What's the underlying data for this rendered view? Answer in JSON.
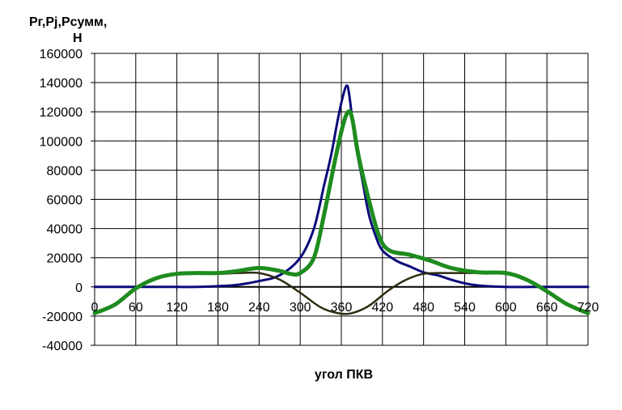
{
  "chart_data": {
    "type": "line",
    "xlabel": "угол ПКВ",
    "ylabel_line1": "Pг,Pj,Pсумм,",
    "ylabel_line2": "Н",
    "xlim": [
      0,
      720
    ],
    "ylim": [
      -40000,
      160000
    ],
    "x_ticks": [
      0,
      60,
      120,
      180,
      240,
      300,
      360,
      420,
      480,
      540,
      600,
      660,
      720
    ],
    "y_ticks": [
      160000,
      140000,
      120000,
      100000,
      80000,
      60000,
      40000,
      20000,
      0,
      -20000,
      -40000
    ],
    "grid": true,
    "legend": "none",
    "series": [
      {
        "color": "#0a0a7a",
        "stroke_width": 3,
        "points": [
          [
            0,
            0
          ],
          [
            30,
            0
          ],
          [
            60,
            0
          ],
          [
            90,
            0
          ],
          [
            120,
            0
          ],
          [
            150,
            0
          ],
          [
            180,
            500
          ],
          [
            210,
            1500
          ],
          [
            240,
            4000
          ],
          [
            270,
            8000
          ],
          [
            300,
            20000
          ],
          [
            320,
            40000
          ],
          [
            335,
            70000
          ],
          [
            345,
            90000
          ],
          [
            355,
            115000
          ],
          [
            362,
            130000
          ],
          [
            368,
            138000
          ],
          [
            372,
            130000
          ],
          [
            380,
            100000
          ],
          [
            390,
            75000
          ],
          [
            400,
            50000
          ],
          [
            410,
            35000
          ],
          [
            420,
            25000
          ],
          [
            440,
            18000
          ],
          [
            460,
            14000
          ],
          [
            480,
            10000
          ],
          [
            500,
            8000
          ],
          [
            520,
            5000
          ],
          [
            540,
            2500
          ],
          [
            560,
            1000
          ],
          [
            600,
            0
          ],
          [
            640,
            0
          ],
          [
            680,
            0
          ],
          [
            720,
            0
          ]
        ]
      },
      {
        "color": "#2e2a10",
        "stroke_width": 2.5,
        "points": [
          [
            0,
            -18000
          ],
          [
            30,
            -12000
          ],
          [
            60,
            -1000
          ],
          [
            90,
            6000
          ],
          [
            120,
            9000
          ],
          [
            150,
            9500
          ],
          [
            180,
            9000
          ],
          [
            210,
            9500
          ],
          [
            240,
            9500
          ],
          [
            270,
            5000
          ],
          [
            300,
            -4000
          ],
          [
            330,
            -14000
          ],
          [
            355,
            -18000
          ],
          [
            375,
            -18000
          ],
          [
            400,
            -13000
          ],
          [
            430,
            -2000
          ],
          [
            455,
            5000
          ],
          [
            480,
            9000
          ],
          [
            510,
            9500
          ],
          [
            540,
            9500
          ],
          [
            570,
            9500
          ],
          [
            600,
            9500
          ],
          [
            630,
            5000
          ],
          [
            660,
            -3000
          ],
          [
            690,
            -12000
          ],
          [
            720,
            -18000
          ]
        ]
      },
      {
        "color": "#1e8c1e",
        "stroke_width": 5,
        "points": [
          [
            0,
            -18000
          ],
          [
            30,
            -12000
          ],
          [
            60,
            -1000
          ],
          [
            90,
            6000
          ],
          [
            120,
            9000
          ],
          [
            150,
            9500
          ],
          [
            180,
            9500
          ],
          [
            210,
            11000
          ],
          [
            240,
            13000
          ],
          [
            270,
            11000
          ],
          [
            285,
            9000
          ],
          [
            300,
            9500
          ],
          [
            320,
            20000
          ],
          [
            335,
            50000
          ],
          [
            350,
            85000
          ],
          [
            362,
            110000
          ],
          [
            370,
            120000
          ],
          [
            376,
            115000
          ],
          [
            385,
            90000
          ],
          [
            400,
            60000
          ],
          [
            415,
            35000
          ],
          [
            430,
            25000
          ],
          [
            460,
            22000
          ],
          [
            490,
            18000
          ],
          [
            520,
            13000
          ],
          [
            560,
            10000
          ],
          [
            600,
            9500
          ],
          [
            630,
            5000
          ],
          [
            660,
            -3000
          ],
          [
            690,
            -12000
          ],
          [
            720,
            -18000
          ]
        ]
      }
    ]
  }
}
